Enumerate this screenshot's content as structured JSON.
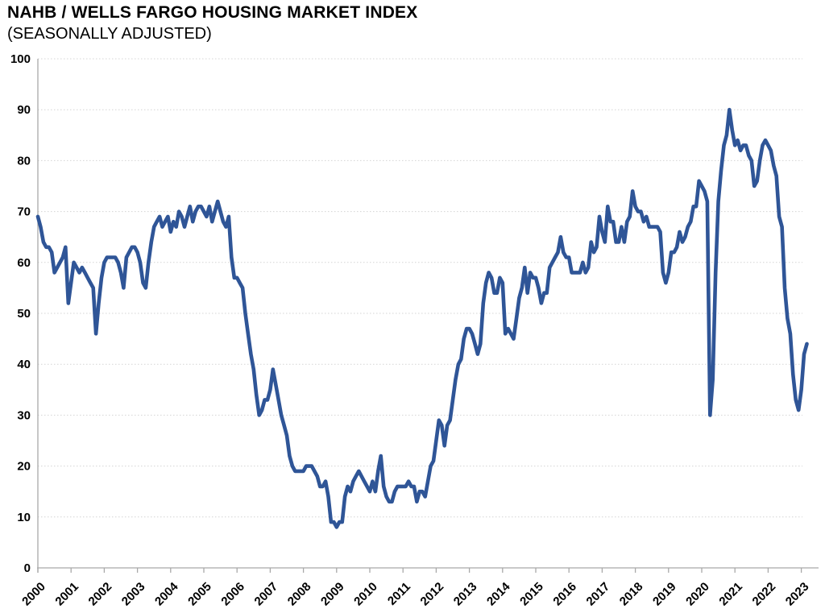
{
  "header": {
    "title": "NAHB / WELLS FARGO HOUSING MARKET INDEX",
    "subtitle": "(SEASONALLY ADJUSTED)"
  },
  "colors": {
    "line": "#2F5597",
    "gridline": "#D4D4D4",
    "axis": "#A9A9A9",
    "text": "#000000",
    "background": "#FFFFFF"
  },
  "chart_data": {
    "type": "line",
    "title": "NAHB / WELLS FARGO HOUSING MARKET INDEX",
    "subtitle": "(SEASONALLY ADJUSTED)",
    "frequency": "monthly",
    "x_range": "Jan 2000 - Mar 2023",
    "ylim": [
      0,
      100
    ],
    "y_ticks": [
      0,
      10,
      20,
      30,
      40,
      50,
      60,
      70,
      80,
      90,
      100
    ],
    "x_tick_labels": [
      "2000",
      "2001",
      "2002",
      "2003",
      "2004",
      "2005",
      "2006",
      "2007",
      "2008",
      "2009",
      "2010",
      "2011",
      "2012",
      "2013",
      "2014",
      "2015",
      "2016",
      "2017",
      "2018",
      "2019",
      "2020",
      "2021",
      "2022",
      "2023"
    ],
    "grid": "horizontal-dotted",
    "legend": "none",
    "series": [
      {
        "name": "Housing Market Index (seasonally adjusted)",
        "color": "#2F5597",
        "values_by_year": {
          "2000": [
            69,
            67,
            64,
            63,
            63,
            62,
            58,
            59,
            60,
            61,
            63,
            52
          ],
          "2001": [
            56,
            60,
            59,
            58,
            59,
            58,
            57,
            56,
            55,
            46,
            52,
            57
          ],
          "2002": [
            60,
            61,
            61,
            61,
            61,
            60,
            58,
            55,
            61,
            62,
            63,
            63
          ],
          "2003": [
            62,
            60,
            56,
            55,
            60,
            64,
            67,
            68,
            69,
            67,
            68,
            69
          ],
          "2004": [
            66,
            68,
            67,
            70,
            69,
            67,
            69,
            71,
            68,
            70,
            71,
            71
          ],
          "2005": [
            70,
            69,
            71,
            68,
            70,
            72,
            70,
            68,
            67,
            69,
            61,
            57
          ],
          "2006": [
            57,
            56,
            55,
            50,
            46,
            42,
            39,
            34,
            30,
            31,
            33,
            33
          ],
          "2007": [
            35,
            39,
            36,
            33,
            30,
            28,
            26,
            22,
            20,
            19,
            19,
            19
          ],
          "2008": [
            19,
            20,
            20,
            20,
            19,
            18,
            16,
            16,
            17,
            14,
            9,
            9
          ],
          "2009": [
            8,
            9,
            9,
            14,
            16,
            15,
            17,
            18,
            19,
            18,
            17,
            16
          ],
          "2010": [
            15,
            17,
            15,
            19,
            22,
            16,
            14,
            13,
            13,
            15,
            16,
            16
          ],
          "2011": [
            16,
            16,
            17,
            16,
            16,
            13,
            15,
            15,
            14,
            17,
            20,
            21
          ],
          "2012": [
            25,
            29,
            28,
            24,
            28,
            29,
            33,
            37,
            40,
            41,
            45,
            47
          ],
          "2013": [
            47,
            46,
            44,
            42,
            44,
            52,
            56,
            58,
            57,
            54,
            54,
            57
          ],
          "2014": [
            56,
            46,
            47,
            46,
            45,
            49,
            53,
            55,
            59,
            54,
            58,
            57
          ],
          "2015": [
            57,
            55,
            52,
            54,
            54,
            59,
            60,
            61,
            62,
            65,
            62,
            61
          ],
          "2016": [
            61,
            58,
            58,
            58,
            58,
            60,
            58,
            59,
            64,
            62,
            63,
            69
          ],
          "2017": [
            66,
            64,
            71,
            68,
            68,
            64,
            64,
            67,
            64,
            68,
            69,
            74
          ],
          "2018": [
            71,
            70,
            70,
            68,
            69,
            67,
            67,
            67,
            67,
            66,
            58,
            56
          ],
          "2019": [
            58,
            62,
            62,
            63,
            66,
            64,
            65,
            67,
            68,
            71,
            71,
            76
          ],
          "2020": [
            75,
            74,
            72,
            30,
            37,
            58,
            72,
            78,
            83,
            85,
            90,
            86
          ],
          "2021": [
            83,
            84,
            82,
            83,
            83,
            81,
            80,
            75,
            76,
            80,
            83,
            84
          ],
          "2022": [
            83,
            82,
            79,
            77,
            69,
            67,
            55,
            49,
            46,
            38,
            33,
            31
          ],
          "2023": [
            35,
            42,
            44
          ]
        }
      }
    ]
  }
}
